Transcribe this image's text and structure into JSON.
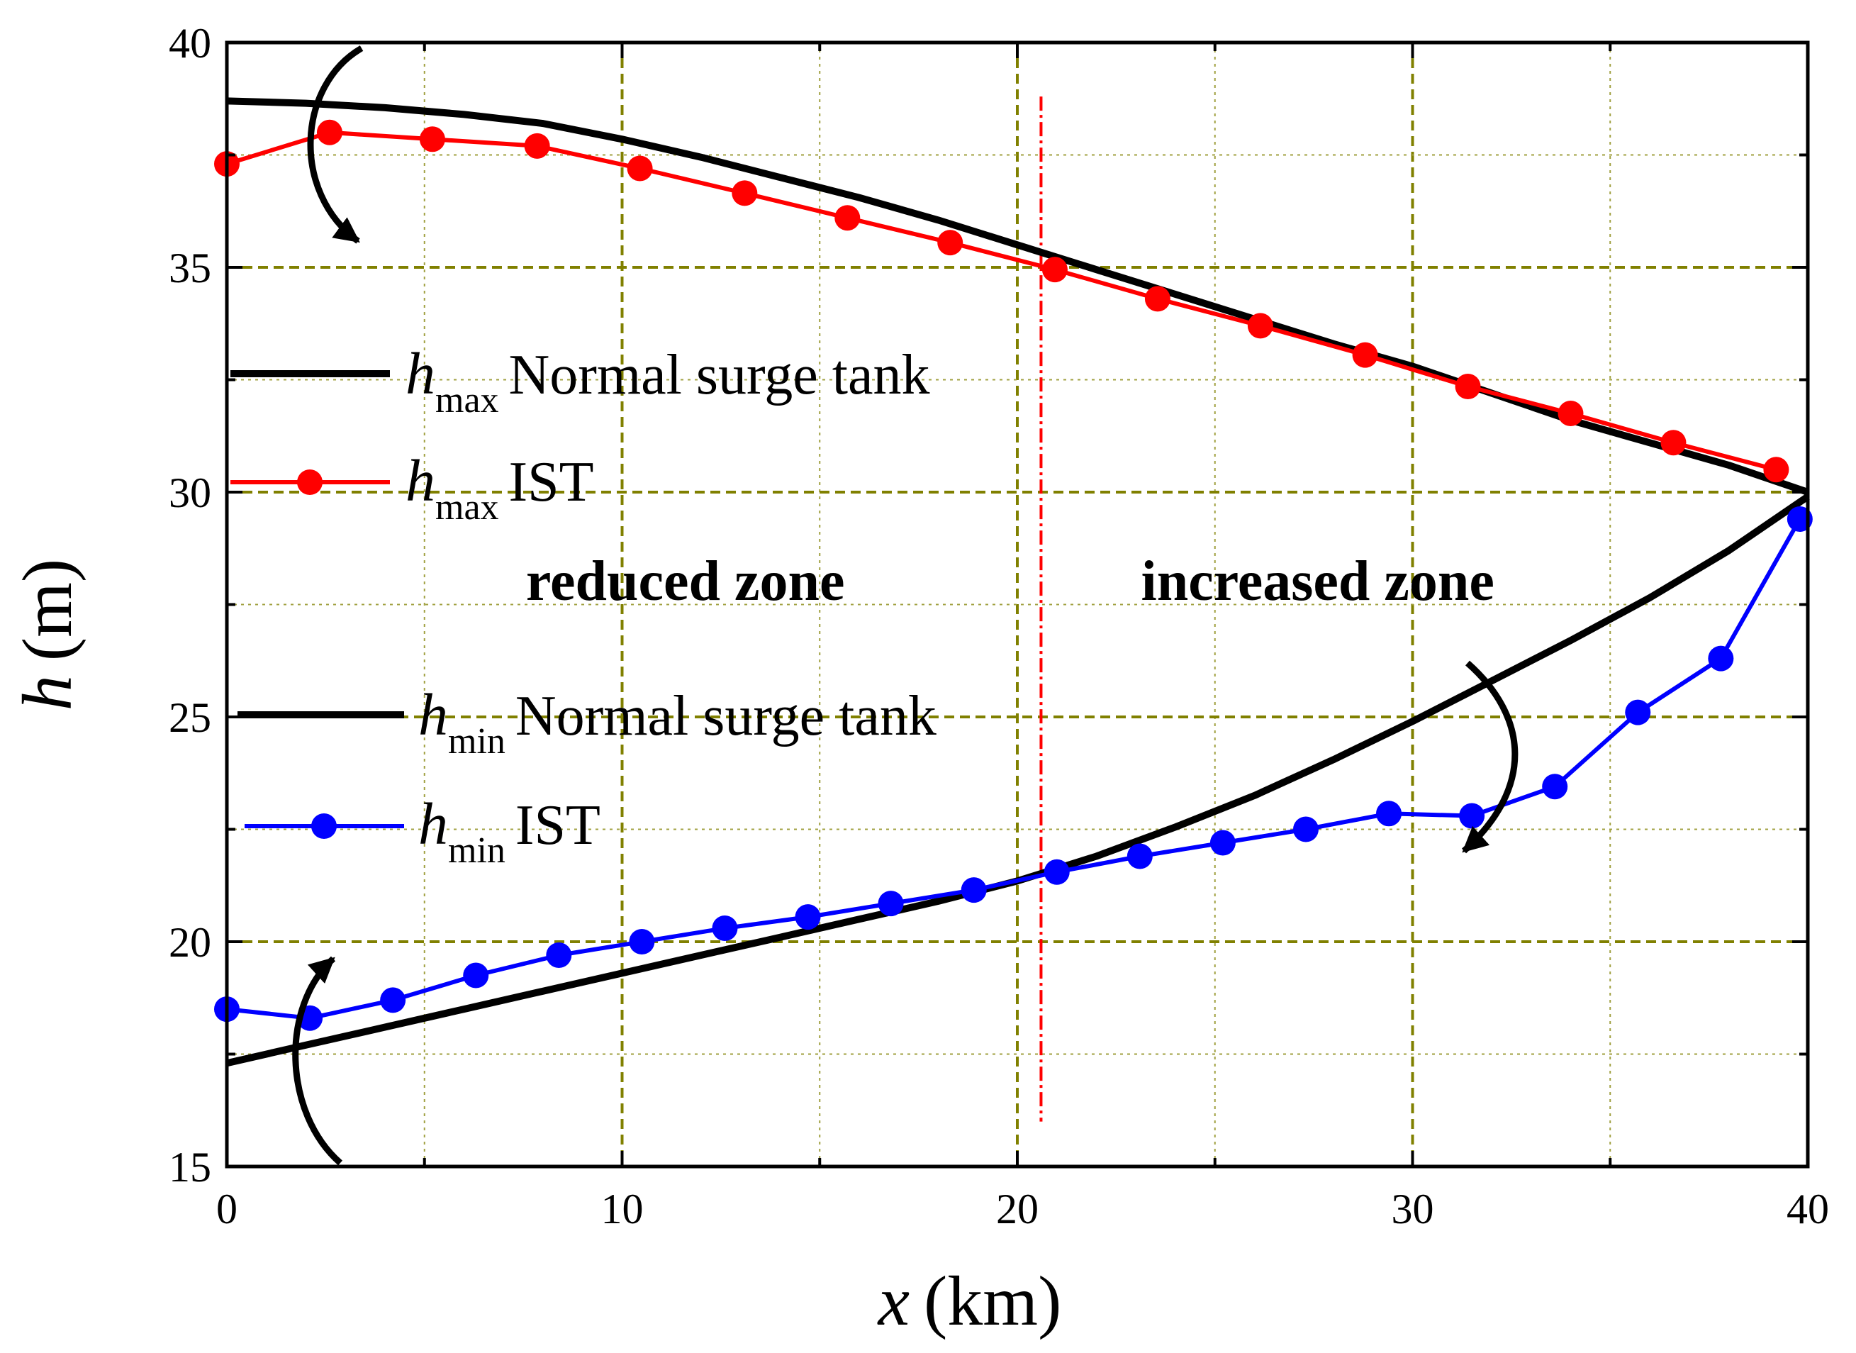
{
  "chart_data": {
    "type": "line",
    "title": "",
    "xlabel": {
      "symbol": "x",
      "unit": "(km)"
    },
    "ylabel": {
      "symbol": "h",
      "unit": "(m)"
    },
    "xlim": [
      0,
      40
    ],
    "ylim": [
      15,
      40
    ],
    "xticks": [
      0,
      10,
      20,
      30,
      40
    ],
    "yticks": [
      15,
      20,
      25,
      30,
      35,
      40
    ],
    "grid": true,
    "legend_position": "left",
    "series": [
      {
        "key": "hmax-normal",
        "sym": "h",
        "sub": "max",
        "label": "Normal surge tank",
        "color": "#000000",
        "markers": false,
        "x": [
          0,
          2,
          4,
          6,
          8,
          10,
          12,
          14,
          16,
          18,
          20,
          22,
          24,
          26,
          28,
          30,
          32,
          34,
          36,
          38,
          40
        ],
        "y": [
          38.7,
          38.65,
          38.55,
          38.4,
          38.2,
          37.85,
          37.45,
          37.0,
          36.55,
          36.05,
          35.5,
          34.95,
          34.4,
          33.85,
          33.3,
          32.8,
          32.2,
          31.6,
          31.1,
          30.6,
          30.0
        ]
      },
      {
        "key": "hmax-ist",
        "sym": "h",
        "sub": "max",
        "label": "IST",
        "color": "#ff0000",
        "markers": true,
        "x": [
          0,
          2.6,
          5.2,
          7.85,
          10.45,
          13.1,
          15.7,
          18.3,
          20.95,
          23.55,
          26.15,
          28.8,
          31.4,
          34.0,
          36.6,
          39.2
        ],
        "y": [
          37.3,
          38.0,
          37.85,
          37.7,
          37.2,
          36.65,
          36.1,
          35.55,
          34.95,
          34.3,
          33.7,
          33.05,
          32.35,
          31.75,
          31.1,
          30.5
        ]
      },
      {
        "key": "hmin-normal",
        "sym": "h",
        "sub": "min",
        "label": "Normal surge tank",
        "color": "#000000",
        "markers": false,
        "x": [
          0,
          2,
          4,
          6,
          8,
          10,
          12,
          14,
          16,
          18,
          20,
          22,
          24,
          26,
          28,
          30,
          32,
          34,
          36,
          38,
          40
        ],
        "y": [
          17.3,
          17.7,
          18.1,
          18.5,
          18.9,
          19.3,
          19.7,
          20.1,
          20.5,
          20.9,
          21.35,
          21.9,
          22.55,
          23.25,
          24.05,
          24.9,
          25.8,
          26.7,
          27.65,
          28.7,
          29.9
        ]
      },
      {
        "key": "hmin-ist",
        "sym": "h",
        "sub": "min",
        "label": "IST",
        "color": "#0000ff",
        "markers": true,
        "x": [
          0,
          2.1,
          4.2,
          6.3,
          8.4,
          10.5,
          12.6,
          14.7,
          16.8,
          18.9,
          21.0,
          23.1,
          25.2,
          27.3,
          29.4,
          31.5,
          33.6,
          35.7,
          37.8,
          39.8
        ],
        "y": [
          18.5,
          18.3,
          18.7,
          19.25,
          19.7,
          20.0,
          20.3,
          20.55,
          20.85,
          21.15,
          21.55,
          21.9,
          22.2,
          22.5,
          22.85,
          22.8,
          23.45,
          25.1,
          26.3,
          29.4
        ]
      }
    ],
    "divider_x": 20.6,
    "annotations": [
      {
        "key": "reduced",
        "text": "reduced zone",
        "x": 11.6,
        "y": 27.6
      },
      {
        "key": "increased",
        "text": "increased zone",
        "x": 27.6,
        "y": 27.6
      }
    ]
  }
}
